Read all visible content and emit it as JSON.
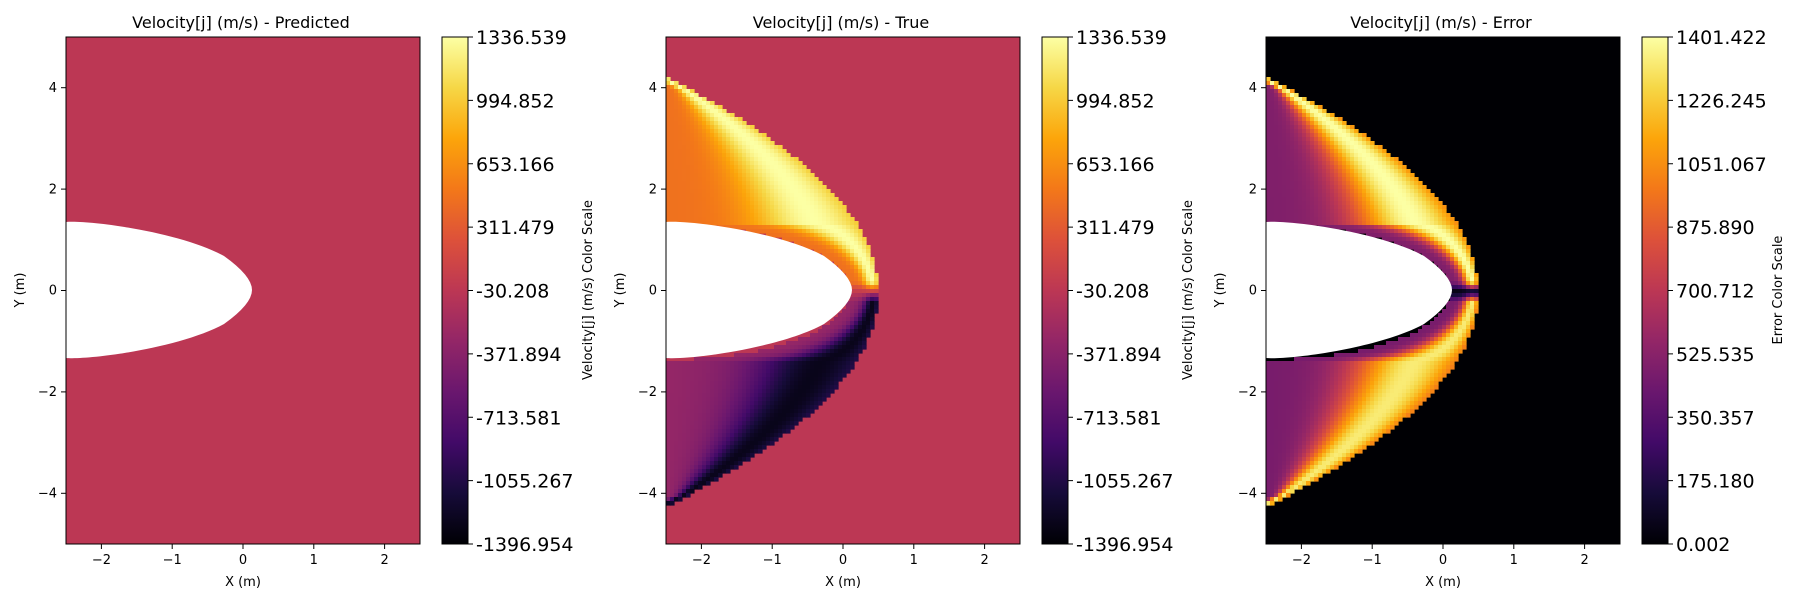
{
  "chart_data": [
    {
      "type": "heatmap",
      "title": "Velocity[j] (m/s) - Predicted",
      "xlabel": "X (m)",
      "ylabel": "Y (m)",
      "xlim": [
        -2.5,
        2.5
      ],
      "ylim": [
        -5,
        5
      ],
      "xticks": [
        "−2",
        "−1",
        "0",
        "1",
        "2"
      ],
      "yticks": [
        "−4",
        "−2",
        "0",
        "2",
        "4"
      ],
      "colormap": "inferno",
      "colorbar_label": "Velocity[j] (m/s) Color Scale",
      "colorbar_ticks": [
        "1336.539",
        "994.852",
        "653.166",
        "311.479",
        "-30.208",
        "-371.894",
        "-713.581",
        "-1055.267",
        "-1396.954"
      ],
      "vmin": -1396.954,
      "vmax": 1336.539,
      "field": "uniform",
      "background_value": 0,
      "body_mask": "ellipse"
    },
    {
      "type": "heatmap",
      "title": "Velocity[j] (m/s) - True",
      "xlabel": "X (m)",
      "ylabel": "Y (m)",
      "xlim": [
        -2.5,
        2.5
      ],
      "ylim": [
        -5,
        5
      ],
      "xticks": [
        "−2",
        "−1",
        "0",
        "1",
        "2"
      ],
      "yticks": [
        "−4",
        "−2",
        "0",
        "2",
        "4"
      ],
      "colormap": "inferno",
      "colorbar_label": "Velocity[j] (m/s) Color Scale",
      "colorbar_ticks": [
        "1336.539",
        "994.852",
        "653.166",
        "311.479",
        "-30.208",
        "-371.894",
        "-713.581",
        "-1055.267",
        "-1396.954"
      ],
      "vmin": -1396.954,
      "vmax": 1336.539,
      "field": "shock_layer_signed",
      "background_value": 0,
      "peak_value": 1336.539,
      "trough_value": -1396.954,
      "body_mask": "ellipse"
    },
    {
      "type": "heatmap",
      "title": "Velocity[j] (m/s) - Error",
      "xlabel": "X (m)",
      "ylabel": "Y (m)",
      "xlim": [
        -2.5,
        2.5
      ],
      "ylim": [
        -5,
        5
      ],
      "xticks": [
        "−2",
        "−1",
        "0",
        "1",
        "2"
      ],
      "yticks": [
        "−4",
        "−2",
        "0",
        "2",
        "4"
      ],
      "colormap": "inferno",
      "colorbar_label": "Error Color Scale",
      "colorbar_ticks": [
        "1401.422",
        "1226.245",
        "1051.067",
        "875.890",
        "700.712",
        "525.535",
        "350.357",
        "175.180",
        "0.002"
      ],
      "vmin": 0.002,
      "vmax": 1401.422,
      "field": "shock_layer_abs",
      "background_value": 0.002,
      "peak_value": 1401.422,
      "body_mask": "ellipse"
    }
  ]
}
